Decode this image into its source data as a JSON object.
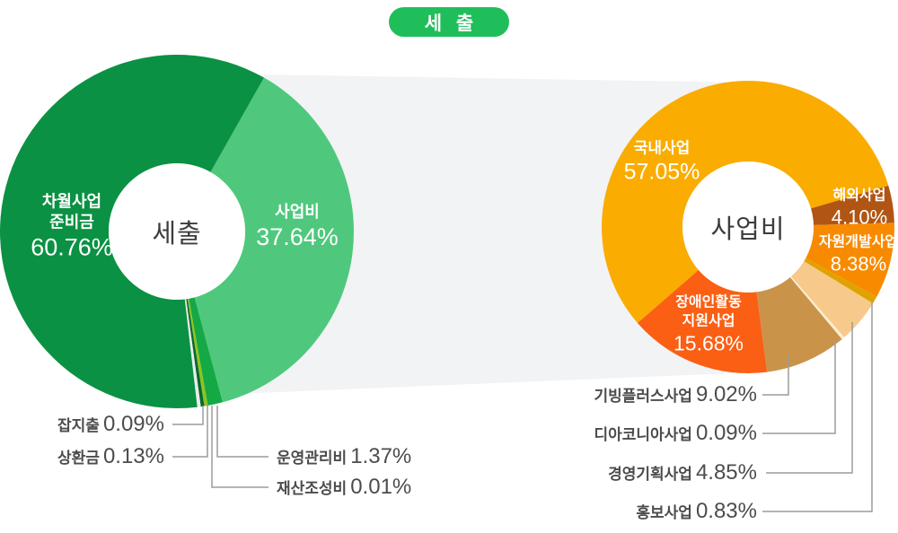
{
  "title": {
    "text": "세 출"
  },
  "colors": {
    "badge_green": "#20BE5A",
    "connector_band": "#F2F3F5",
    "leader_line": "#9B9B9B",
    "center_text": "#3D3D3D",
    "outside_label_text": "#4C4C4C",
    "background": "#FFFFFF"
  },
  "chart_data": [
    {
      "type": "pie",
      "title": "세출",
      "center_label": "세출",
      "start_angle_deg": 29.5,
      "legend_position": "none",
      "slices": [
        {
          "label": "사업비",
          "value": 37.64,
          "pct_text": "37.64%",
          "color": "#4FC87D",
          "label_placement": "on-slice"
        },
        {
          "label": "운영관리비",
          "value": 1.37,
          "pct_text": "1.37%",
          "color": "#15A945",
          "label_placement": "leader-right"
        },
        {
          "label": "재산조성비",
          "value": 0.01,
          "pct_text": "0.01%",
          "color": "#8FC31E",
          "label_placement": "leader-right"
        },
        {
          "label": "상환금",
          "value": 0.13,
          "pct_text": "0.13%",
          "color": "#07682F",
          "label_placement": "leader-left"
        },
        {
          "label": "잡지출",
          "value": 0.09,
          "pct_text": "0.09%",
          "color": "#E9ECEB",
          "label_placement": "leader-left"
        },
        {
          "label": "차월사업 준비금",
          "value": 60.76,
          "pct_text": "60.76%",
          "color": "#0B9143",
          "label_placement": "on-slice",
          "label_lines": [
            "차월사업",
            "준비금"
          ]
        }
      ]
    },
    {
      "type": "pie",
      "title": "사업비",
      "center_label": "사업비",
      "start_angle_deg": 229,
      "legend_position": "none",
      "slices": [
        {
          "label": "국내사업",
          "value": 57.05,
          "pct_text": "57.05%",
          "color": "#FAAC00",
          "label_placement": "on-slice"
        },
        {
          "label": "해외사업",
          "value": 4.1,
          "pct_text": "4.10%",
          "color": "#B05513",
          "label_placement": "on-slice"
        },
        {
          "label": "자원개발사업",
          "value": 8.38,
          "pct_text": "8.38%",
          "color": "#F88A00",
          "label_placement": "on-slice"
        },
        {
          "label": "홍보사업",
          "value": 0.83,
          "pct_text": "0.83%",
          "color": "#DFA300",
          "label_placement": "leader-bottom"
        },
        {
          "label": "경영기획사업",
          "value": 4.85,
          "pct_text": "4.85%",
          "color": "#F7C98B",
          "label_placement": "leader-bottom"
        },
        {
          "label": "디아코니아사업",
          "value": 0.09,
          "pct_text": "0.09%",
          "color": "#FBEED3",
          "label_placement": "leader-bottom"
        },
        {
          "label": "기빙플러스사업",
          "value": 9.02,
          "pct_text": "9.02%",
          "color": "#C9944A",
          "label_placement": "leader-bottom"
        },
        {
          "label": "장애인활동 지원사업",
          "value": 15.68,
          "pct_text": "15.68%",
          "color": "#FA5F14",
          "label_placement": "on-slice",
          "label_lines": [
            "장애인활동",
            "지원사업"
          ]
        }
      ]
    }
  ]
}
